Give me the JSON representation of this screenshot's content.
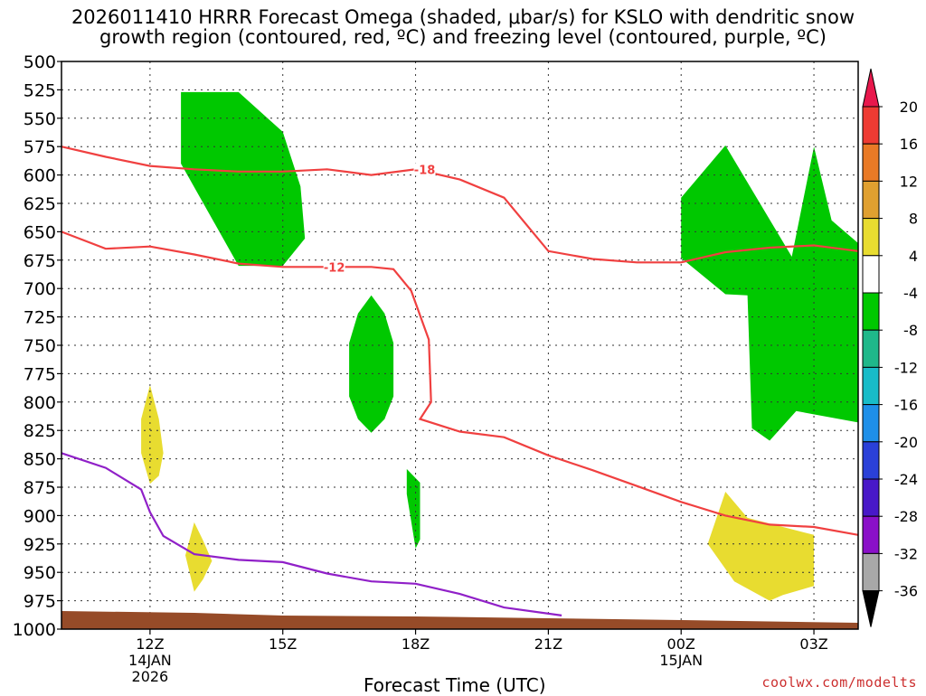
{
  "chart_data": {
    "type": "heatmap",
    "title_line1": "2026011410 HRRR Forecast Omega (shaded, μbar/s) for KSLO with dendritic snow",
    "title_line2": "growth region (contoured, red, ºC) and freezing level (contoured, purple, ºC)",
    "xlabel": "Forecast Time (UTC)",
    "ylabel": "",
    "x_ticks": [
      {
        "hour": 12,
        "label": "12Z",
        "sub1": "14JAN",
        "sub2": "2026"
      },
      {
        "hour": 15,
        "label": "15Z",
        "sub1": "",
        "sub2": ""
      },
      {
        "hour": 18,
        "label": "18Z",
        "sub1": "",
        "sub2": ""
      },
      {
        "hour": 21,
        "label": "21Z",
        "sub1": "",
        "sub2": ""
      },
      {
        "hour": 24,
        "label": "00Z",
        "sub1": "15JAN",
        "sub2": ""
      },
      {
        "hour": 27,
        "label": "03Z",
        "sub1": "",
        "sub2": ""
      }
    ],
    "x_range": [
      10,
      28
    ],
    "y_range": [
      500,
      1000
    ],
    "y_ticks": [
      500,
      525,
      550,
      575,
      600,
      625,
      650,
      675,
      700,
      725,
      750,
      775,
      800,
      825,
      850,
      875,
      900,
      925,
      950,
      975,
      1000
    ],
    "grid": true,
    "colorbar": {
      "labels": [
        "20",
        "16",
        "12",
        "8",
        "4",
        "-4",
        "-8",
        "-12",
        "-16",
        "-20",
        "-24",
        "-28",
        "-32",
        "-36"
      ],
      "colors": [
        "#e8184c",
        "#ee3b33",
        "#e97a26",
        "#e0a030",
        "#e8dc30",
        "#ffffff",
        "#00c800",
        "#1fb88a",
        "#18bcc8",
        "#1e8fe8",
        "#2a40d8",
        "#4818c8",
        "#8a10c8",
        "#a8a8a8",
        "#000000"
      ]
    },
    "contours": [
      {
        "label": "-18",
        "color": "#f04040",
        "hours": [
          10,
          11,
          12,
          13,
          14,
          15,
          16,
          17,
          18,
          19,
          20,
          21,
          22,
          23,
          24,
          25,
          26,
          27,
          28
        ],
        "values": [
          575,
          584,
          592,
          595,
          597,
          597,
          595,
          600,
          595,
          604,
          620,
          667,
          674,
          677,
          677,
          668,
          664,
          662,
          667
        ]
      },
      {
        "label": "-12",
        "color": "#f04040",
        "hours": [
          10,
          11,
          12,
          13,
          14,
          15,
          16,
          17,
          17.5,
          17.9,
          18.3,
          18.35,
          18.1,
          19,
          20,
          21,
          22,
          23,
          24,
          25,
          26,
          27,
          28
        ],
        "values": [
          650,
          665,
          663,
          670,
          678,
          681,
          681,
          681,
          683,
          702,
          745,
          800,
          815,
          826,
          831,
          847,
          860,
          874,
          888,
          900,
          908,
          910,
          917
        ]
      },
      {
        "label": "",
        "color": "#9020c8",
        "hours": [
          10,
          11,
          11.8,
          12,
          12.3,
          13,
          14,
          15,
          16,
          17,
          18,
          19,
          20,
          21.3
        ],
        "values": [
          845,
          858,
          877,
          897,
          918,
          934,
          939,
          941,
          951,
          958,
          960,
          969,
          981,
          988
        ]
      }
    ],
    "omega_regions": [
      {
        "value": "-4 to -8",
        "color": "#00c800",
        "hours": [
          12.7,
          14,
          15,
          15.4,
          15.5,
          15,
          14,
          12.7
        ],
        "values": [
          527,
          527,
          562,
          610,
          656,
          680,
          680,
          590
        ]
      },
      {
        "value": "-4 to -8",
        "color": "#00c800",
        "hours": [
          17,
          17.3,
          17.5,
          17.5,
          17.3,
          17,
          16.7,
          16.5,
          16.5,
          16.7
        ],
        "values": [
          706,
          722,
          748,
          795,
          815,
          827,
          815,
          795,
          748,
          722
        ]
      },
      {
        "value": "-4 to -8",
        "color": "#00c800",
        "hours": [
          17.8,
          18.1,
          18.1,
          18,
          17.8
        ],
        "values": [
          859,
          871,
          921,
          929,
          881
        ]
      },
      {
        "value": "-4 to -8",
        "color": "#00c800",
        "hours": [
          24,
          25,
          26.5,
          27,
          27.4,
          28,
          28,
          26.6,
          26,
          25.6,
          25.5,
          25,
          24
        ],
        "values": [
          620,
          574,
          672,
          575,
          640,
          660,
          818,
          808,
          834,
          823,
          706,
          705,
          673
        ]
      },
      {
        "value": "4 to 8",
        "color": "#e8dc30",
        "hours": [
          12,
          12.2,
          12.3,
          12.2,
          12,
          11.8,
          11.8
        ],
        "values": [
          785,
          815,
          845,
          865,
          872,
          845,
          815
        ]
      },
      {
        "value": "4 to 8",
        "color": "#e8dc30",
        "hours": [
          13,
          13.2,
          13.4,
          13.2,
          13,
          12.8
        ],
        "values": [
          906,
          922,
          940,
          956,
          967,
          935
        ]
      },
      {
        "value": "4 to 8",
        "color": "#e8dc30",
        "hours": [
          25,
          25.5,
          27,
          27,
          26.3,
          26,
          25.2,
          24.6
        ],
        "values": [
          879,
          902,
          917,
          962,
          970,
          975,
          958,
          925
        ]
      }
    ],
    "terrain_color": "#964b28"
  },
  "footer": "coolwx.com/modelts"
}
